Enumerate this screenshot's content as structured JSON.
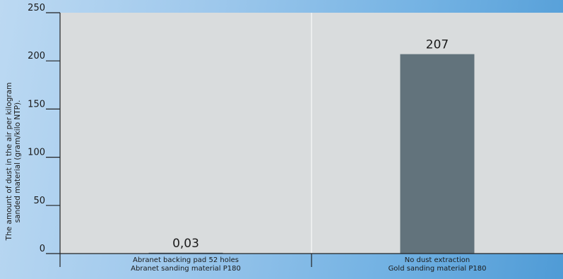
{
  "chart_data": {
    "type": "bar",
    "categories": [
      [
        "Abranet backing pad 52 holes",
        "Abranet sanding material P180"
      ],
      [
        "No dust extraction",
        "Gold sanding material P180"
      ]
    ],
    "values": [
      0.03,
      207
    ],
    "data_labels": [
      "0,03",
      "207"
    ],
    "title": "",
    "xlabel": "",
    "ylabel": [
      "The amount of dust in the air per kilogram",
      "sanded material (gram/kilo NTP)."
    ],
    "ylim": [
      0,
      250
    ],
    "yticks": [
      0,
      50,
      100,
      150,
      200,
      250
    ],
    "grid": "vertical separator between categories",
    "colors": {
      "plot_background": "#d9dcdd",
      "bar_fill": "#62737c",
      "axis": "#222222",
      "gridline": "#ffffff"
    }
  }
}
